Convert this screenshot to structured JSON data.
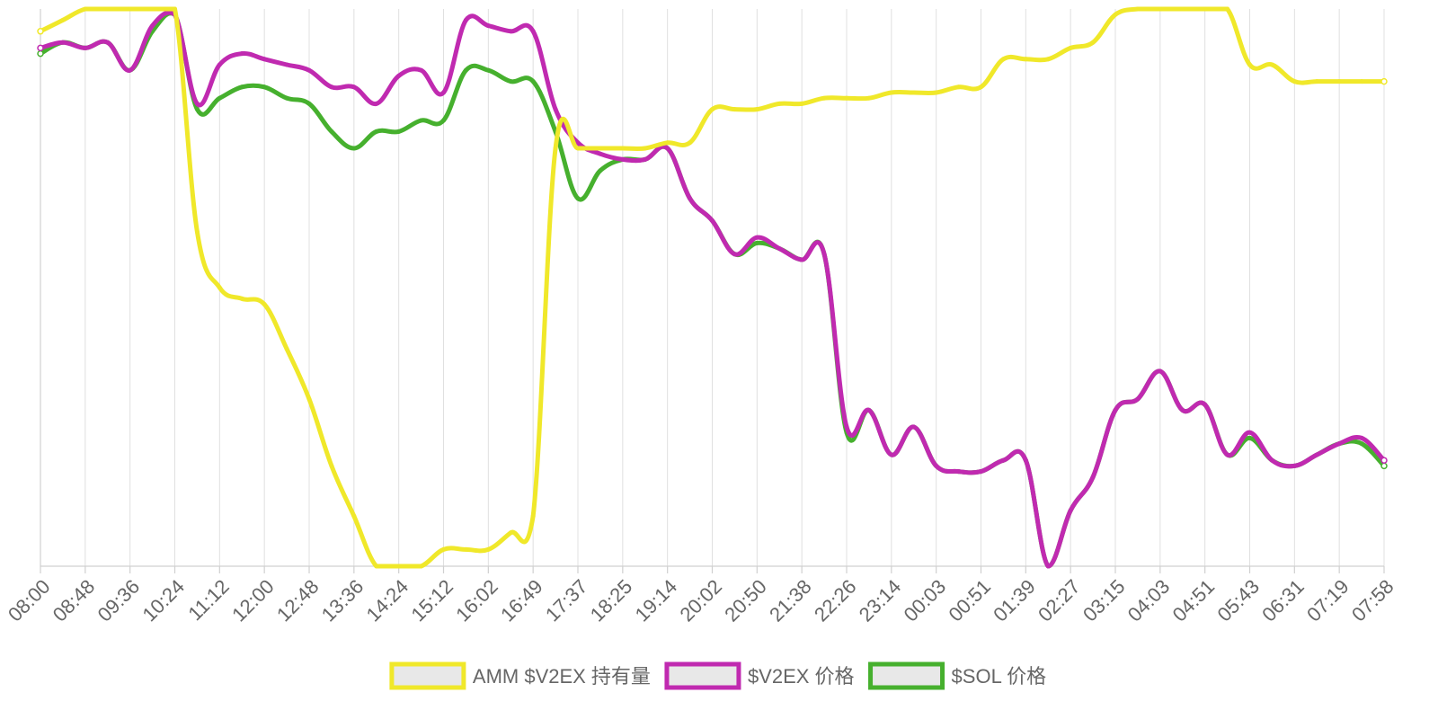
{
  "chart_data": {
    "type": "line",
    "title": "",
    "xlabel": "",
    "ylabel": "",
    "y_axis_labels_shown": false,
    "grid": "vertical",
    "legend_position": "bottom",
    "x_labels": [
      "08:00",
      "08:48",
      "09:36",
      "10:24",
      "11:12",
      "12:00",
      "12:48",
      "13:36",
      "14:24",
      "15:12",
      "16:02",
      "16:49",
      "17:37",
      "18:25",
      "19:14",
      "20:02",
      "20:50",
      "21:38",
      "22:26",
      "23:14",
      "00:03",
      "00:51",
      "01:39",
      "02:27",
      "03:15",
      "04:03",
      "04:51",
      "05:43",
      "06:31",
      "07:19",
      "07:58"
    ],
    "x": [
      0,
      0.5,
      1,
      1.5,
      2,
      2.5,
      3,
      3.5,
      4,
      4.5,
      5,
      5.5,
      6,
      6.5,
      7,
      7.5,
      8,
      8.5,
      9,
      9.5,
      10,
      10.5,
      11,
      11.5,
      12,
      12.5,
      13,
      13.5,
      14,
      14.5,
      15,
      15.5,
      16,
      16.5,
      17,
      17.5,
      18,
      18.5,
      19,
      19.5,
      20,
      20.5,
      21,
      21.5,
      22,
      22.5,
      23,
      23.5,
      24,
      24.5,
      25,
      25.5,
      26,
      26.5,
      27,
      27.5,
      28,
      28.5,
      29,
      29.5,
      30
    ],
    "ylim": [
      0,
      100
    ],
    "series": [
      {
        "name": "AMM $V2EX 持有量",
        "color": "#f0e82a",
        "values": [
          96,
          98,
          100,
          100,
          100,
          100,
          100,
          60,
          50,
          48,
          47,
          39,
          30,
          18,
          9,
          0,
          0,
          0,
          3,
          3,
          3,
          6,
          9,
          75,
          75,
          75,
          75,
          75,
          76,
          76,
          82,
          82,
          82,
          83,
          83,
          84,
          84,
          84,
          85,
          85,
          85,
          86,
          86,
          91,
          91,
          91,
          93,
          94,
          99,
          100,
          100,
          100,
          100,
          100,
          90,
          90,
          87,
          87,
          87,
          87,
          87
        ]
      },
      {
        "name": "$V2EX 价格",
        "color": "#c02ab0",
        "values": [
          93,
          94,
          93,
          94,
          89,
          97,
          99,
          83,
          90,
          92,
          91,
          90,
          89,
          86,
          86,
          83,
          88,
          89,
          85,
          98,
          97,
          96,
          96,
          82,
          76,
          74,
          73,
          73,
          75,
          66,
          62,
          56,
          59,
          57,
          55,
          56,
          25,
          28,
          20,
          25,
          18,
          17,
          17,
          19,
          19,
          0,
          10,
          16,
          28,
          30,
          35,
          28,
          29,
          20,
          24,
          19,
          18,
          20,
          22,
          23,
          19
        ]
      },
      {
        "name": "$SOL 价格",
        "color": "#46b02e",
        "values": [
          92,
          94,
          93,
          94,
          89,
          96,
          99,
          82,
          84,
          86,
          86,
          84,
          83,
          78,
          75,
          78,
          78,
          80,
          80,
          89,
          89,
          87,
          87,
          78,
          66,
          71,
          73,
          73,
          75,
          66,
          62,
          56,
          58,
          57,
          55,
          56,
          24,
          28,
          20,
          25,
          18,
          17,
          17,
          19,
          19,
          0,
          10,
          16,
          28,
          30,
          35,
          28,
          29,
          20,
          23,
          19,
          18,
          20,
          22,
          22,
          18
        ]
      }
    ]
  }
}
